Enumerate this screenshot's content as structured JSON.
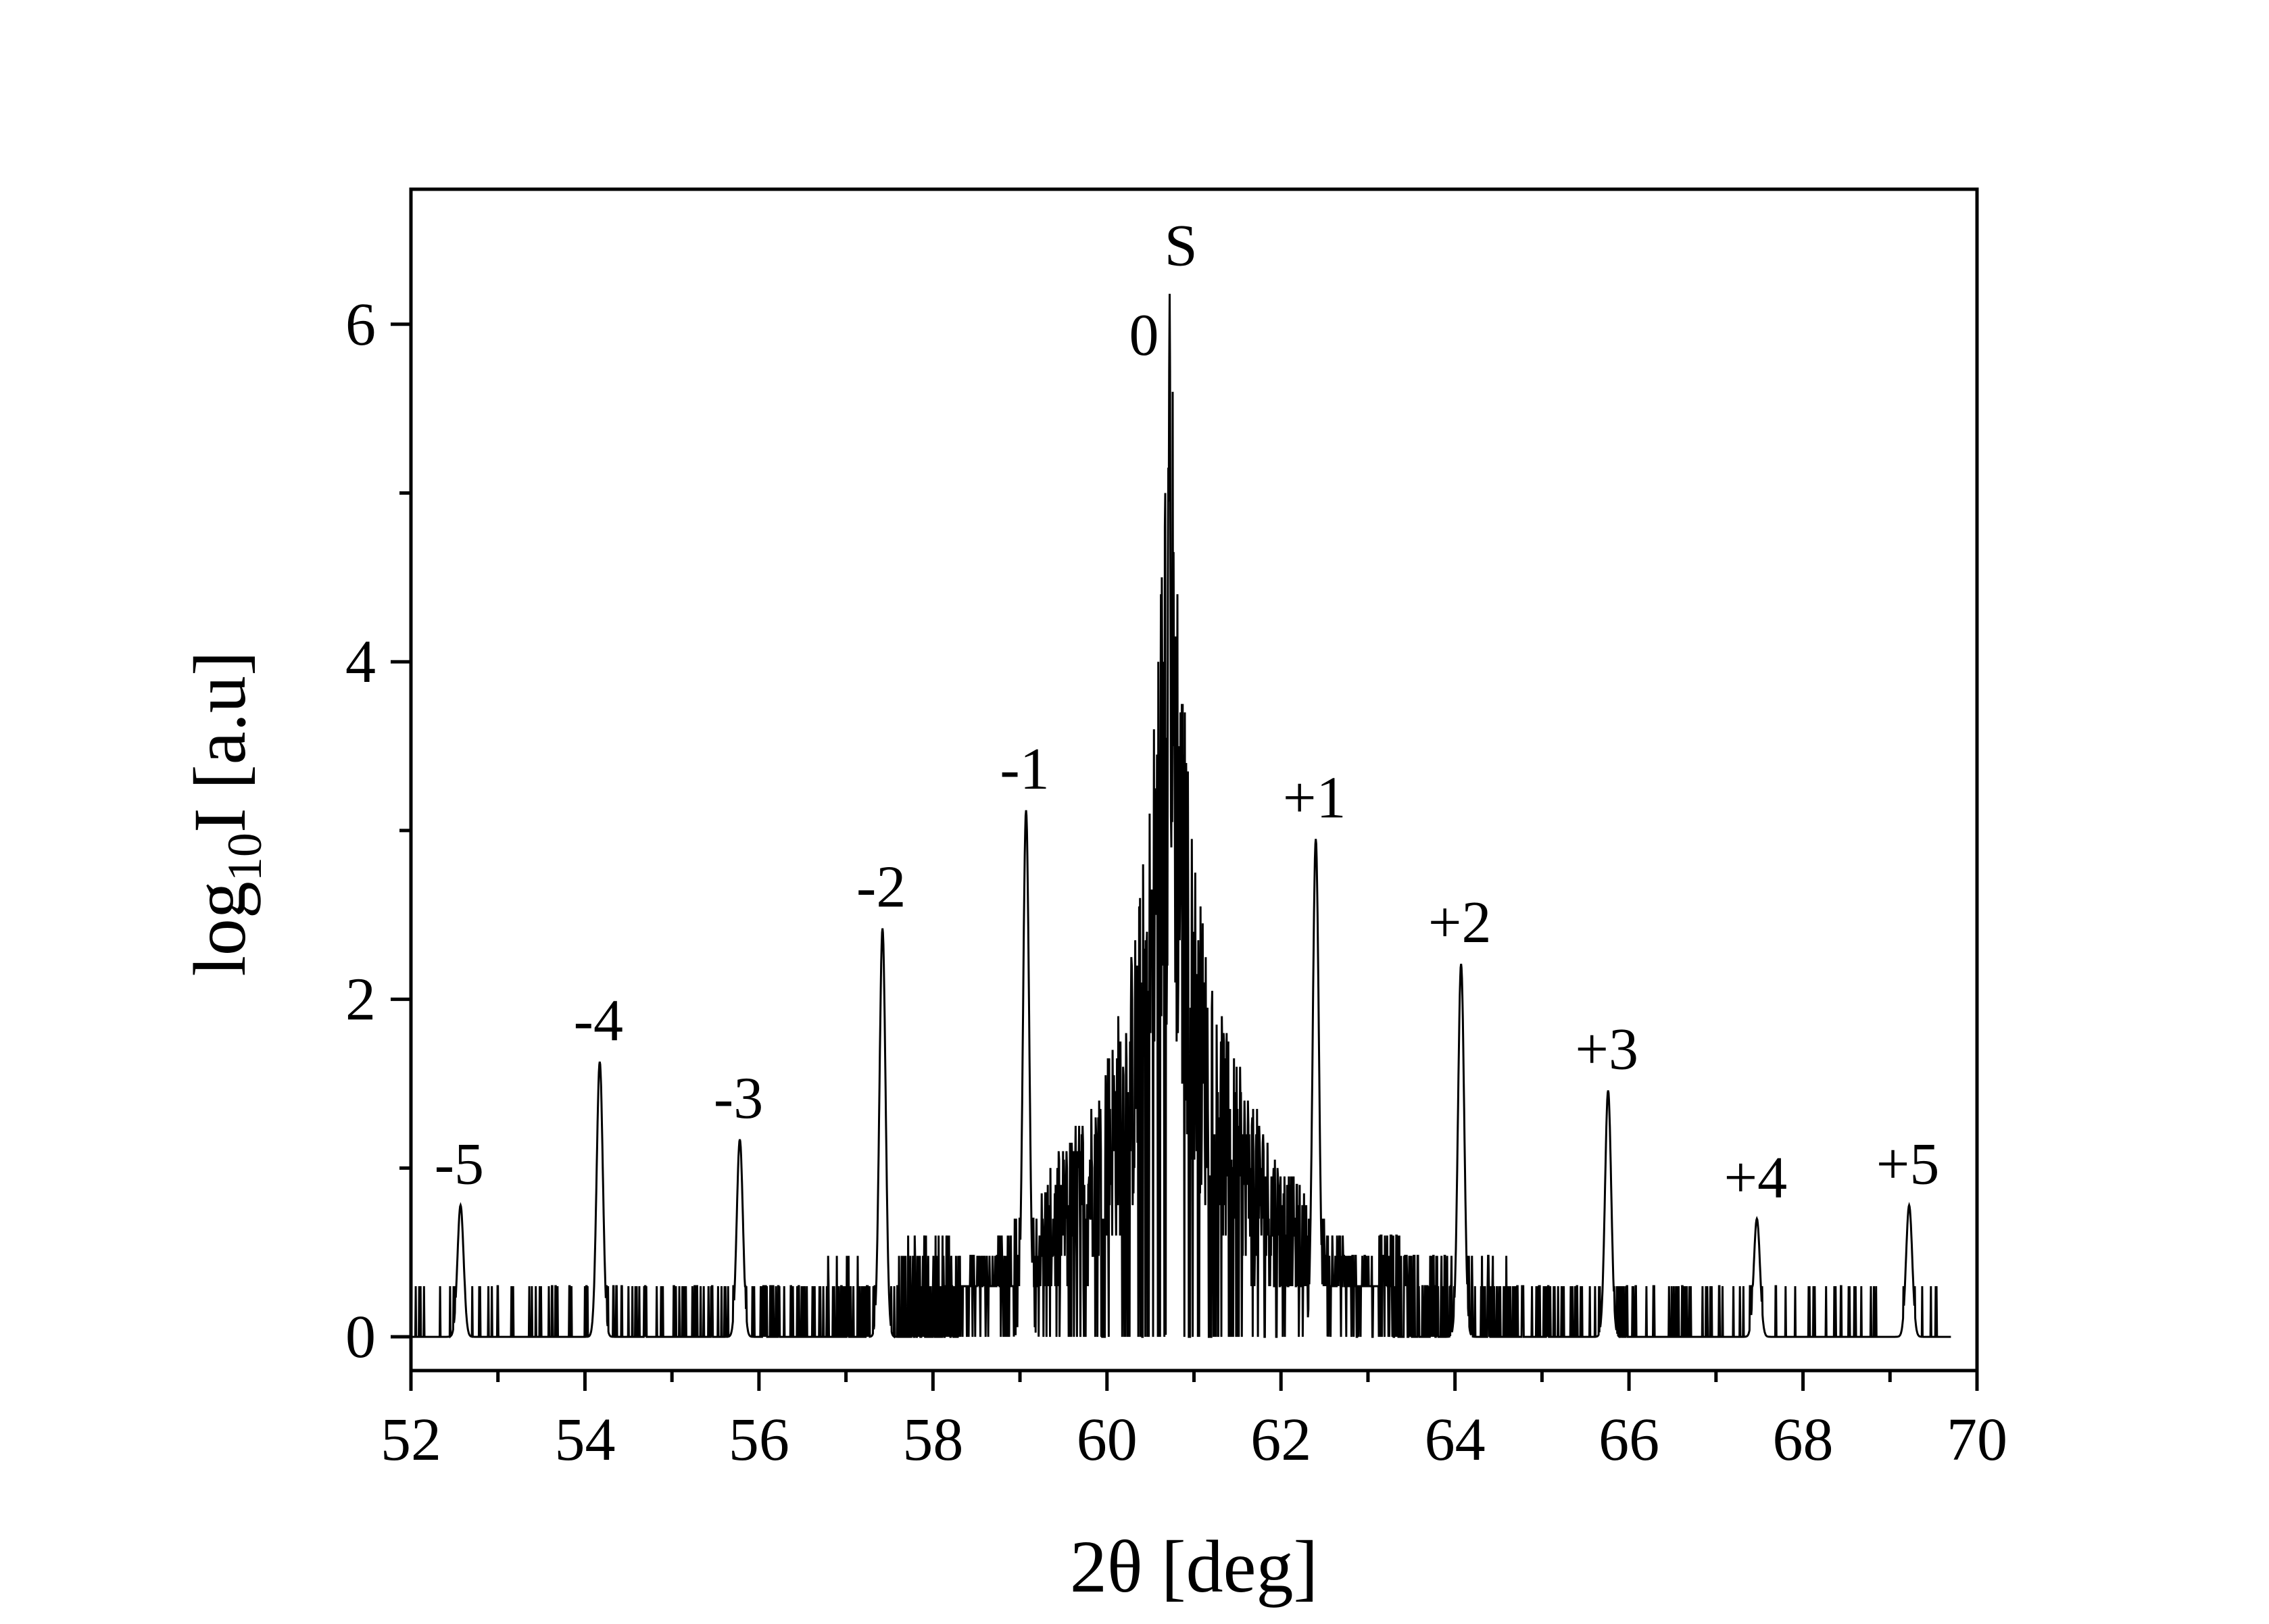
{
  "chart_data": {
    "type": "line",
    "xlabel": "2θ [deg]",
    "ylabel": {
      "prefix": "log",
      "subscript": "10",
      "suffix": "I [a.u]"
    },
    "xlim": [
      52,
      70
    ],
    "ylim": [
      -0.2,
      6.8
    ],
    "xticks": [
      52,
      54,
      56,
      58,
      60,
      62,
      64,
      66,
      68,
      70
    ],
    "yticks": [
      0,
      2,
      4,
      6
    ],
    "x_minor_step": 1,
    "y_minor_step": 1,
    "grid": false,
    "colors": {
      "line": "#000000",
      "axes": "#000000",
      "background": "#ffffff"
    },
    "data_range": [
      52.0,
      69.7
    ],
    "baseline": 0,
    "noise_levels": [
      0.3,
      0.48,
      0.6,
      0.7,
      0.78,
      0.85,
      0.9,
      0.95,
      1.0
    ],
    "envelope_components": [
      {
        "center": 60.72,
        "amplitude": 3.2,
        "width": 0.15
      },
      {
        "center": 60.72,
        "amplitude": 1.9,
        "width": 0.9
      },
      {
        "center": 60.72,
        "amplitude": 0.95,
        "width": 2.2
      }
    ],
    "peaks": [
      {
        "label": "-5",
        "x": 52.57,
        "y": 0.78
      },
      {
        "label": "-4",
        "x": 54.17,
        "y": 1.63
      },
      {
        "label": "-3",
        "x": 55.78,
        "y": 1.17
      },
      {
        "label": "-2",
        "x": 57.42,
        "y": 2.42
      },
      {
        "label": "-1",
        "x": 59.07,
        "y": 3.12
      },
      {
        "label": "0",
        "x": 60.72,
        "y": 6.18
      },
      {
        "label": "+1",
        "x": 62.4,
        "y": 2.95
      },
      {
        "label": "+2",
        "x": 64.07,
        "y": 2.21
      },
      {
        "label": "+3",
        "x": 65.76,
        "y": 1.46
      },
      {
        "label": "+4",
        "x": 67.47,
        "y": 0.7
      },
      {
        "label": "+5",
        "x": 69.22,
        "y": 0.78
      }
    ],
    "annotations": [
      {
        "text": "S",
        "x": 60.85,
        "y": 6.35
      }
    ]
  }
}
